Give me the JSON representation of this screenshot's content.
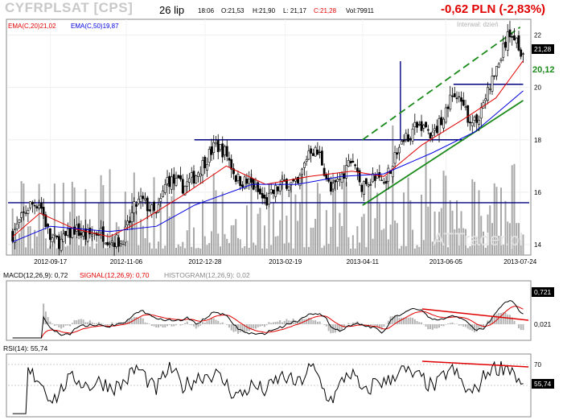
{
  "header": {
    "ticker": "CYFRPLSAT [CPS]",
    "date": "26 lip",
    "time": "18:06",
    "open": "O:21,53",
    "high": "H:21,90",
    "low": "L: 21,17",
    "close": "C:21,28",
    "volume": "Vol:79911",
    "change": "-0,62 PLN (-2,83%)"
  },
  "main_panel": {
    "ema20_label": "EMA(C,20)21,02",
    "ema50_label": "EMA(C,50)19,87",
    "interval_label": "Interwał: dzień",
    "watermark": "ATTrader.pl",
    "last_price_tag": "21,28",
    "level_tag": "20,12"
  },
  "macd_panel": {
    "macd_label": "MACD(12,26,9): 0,72",
    "signal_label": "SIGNAL(12,26,9): 0,70",
    "histogram_label": "HISTOGRAM(12,26,9): 0,02",
    "last_macd_tag": "0,721",
    "last_hist_tag": "0,021"
  },
  "rsi_panel": {
    "rsi_label": "RSI(14): 55,74",
    "last_rsi_tag": "55,74"
  },
  "colors": {
    "candles": "#000000",
    "ema20": "#e00000",
    "ema50": "#0000e0",
    "volume": "#a8a8a8",
    "support_lines": "#000080",
    "trend_channel": "#1a8a1a",
    "change_text": "#e00000",
    "macd_signal": "#e00000",
    "rsi_divergence": "#e00000"
  },
  "chart_data": [
    {
      "type": "candlestick",
      "panel": "price",
      "x_tick_labels": [
        "2012-09-17",
        "2012-11-06",
        "2012-12-28",
        "2013-02-19",
        "2013-04-11",
        "2013-06-05",
        "2013-07-24"
      ],
      "y_ticks": [
        14,
        16,
        18,
        20,
        22
      ],
      "ylim": [
        13.6,
        22.6
      ],
      "grid": true,
      "legend": "top-left",
      "series": [
        {
          "name": "CYFRPLSAT [CPS]",
          "close_path": [
            {
              "date": "2012-08-23",
              "value": 14.4
            },
            {
              "date": "2012-09-03",
              "value": 15.5
            },
            {
              "date": "2012-09-10",
              "value": 15.6
            },
            {
              "date": "2012-09-17",
              "value": 14.2
            },
            {
              "date": "2012-09-24",
              "value": 14.1
            },
            {
              "date": "2012-10-03",
              "value": 14.6
            },
            {
              "date": "2012-10-10",
              "value": 14.3
            },
            {
              "date": "2012-10-19",
              "value": 14.5
            },
            {
              "date": "2012-10-26",
              "value": 14.2
            },
            {
              "date": "2012-11-02",
              "value": 14.1
            },
            {
              "date": "2012-11-06",
              "value": 14.5
            },
            {
              "date": "2012-11-12",
              "value": 15.5
            },
            {
              "date": "2012-11-16",
              "value": 15.7
            },
            {
              "date": "2012-11-26",
              "value": 15.1
            },
            {
              "date": "2012-12-03",
              "value": 16.5
            },
            {
              "date": "2012-12-14",
              "value": 16.2
            },
            {
              "date": "2012-12-21",
              "value": 16.6
            },
            {
              "date": "2013-01-04",
              "value": 17.8
            },
            {
              "date": "2013-01-11",
              "value": 17.5
            },
            {
              "date": "2013-01-18",
              "value": 16.5
            },
            {
              "date": "2013-01-28",
              "value": 16.3
            },
            {
              "date": "2013-02-06",
              "value": 15.6
            },
            {
              "date": "2013-02-13",
              "value": 16.1
            },
            {
              "date": "2013-02-20",
              "value": 16.4
            },
            {
              "date": "2013-02-27",
              "value": 16.2
            },
            {
              "date": "2013-03-07",
              "value": 17.7
            },
            {
              "date": "2013-03-14",
              "value": 17.4
            },
            {
              "date": "2013-03-21",
              "value": 16.0
            },
            {
              "date": "2013-03-28",
              "value": 16.6
            },
            {
              "date": "2013-04-04",
              "value": 17.3
            },
            {
              "date": "2013-04-11",
              "value": 16.1
            },
            {
              "date": "2013-04-18",
              "value": 16.6
            },
            {
              "date": "2013-04-25",
              "value": 16.4
            },
            {
              "date": "2013-05-06",
              "value": 17.8
            },
            {
              "date": "2013-05-13",
              "value": 18.3
            },
            {
              "date": "2013-05-20",
              "value": 18.6
            },
            {
              "date": "2013-05-27",
              "value": 18.1
            },
            {
              "date": "2013-06-03",
              "value": 18.9
            },
            {
              "date": "2013-06-10",
              "value": 19.8
            },
            {
              "date": "2013-06-17",
              "value": 19.1
            },
            {
              "date": "2013-06-24",
              "value": 18.6
            },
            {
              "date": "2013-07-01",
              "value": 19.6
            },
            {
              "date": "2013-07-08",
              "value": 20.6
            },
            {
              "date": "2013-07-15",
              "value": 21.8
            },
            {
              "date": "2013-07-19",
              "value": 22.1
            },
            {
              "date": "2013-07-26",
              "value": 21.28
            }
          ]
        },
        {
          "name": "EMA(C,20)",
          "points": [
            {
              "date": "2012-08-23",
              "value": 14.3
            },
            {
              "date": "2012-09-10",
              "value": 15.2
            },
            {
              "date": "2012-10-03",
              "value": 14.6
            },
            {
              "date": "2012-10-26",
              "value": 14.3
            },
            {
              "date": "2012-11-16",
              "value": 14.9
            },
            {
              "date": "2012-12-14",
              "value": 15.9
            },
            {
              "date": "2013-01-11",
              "value": 17.0
            },
            {
              "date": "2013-02-06",
              "value": 16.3
            },
            {
              "date": "2013-03-07",
              "value": 16.6
            },
            {
              "date": "2013-04-04",
              "value": 16.8
            },
            {
              "date": "2013-04-25",
              "value": 16.6
            },
            {
              "date": "2013-05-20",
              "value": 17.8
            },
            {
              "date": "2013-06-17",
              "value": 18.8
            },
            {
              "date": "2013-07-08",
              "value": 19.6
            },
            {
              "date": "2013-07-26",
              "value": 21.02
            }
          ]
        },
        {
          "name": "EMA(C,50)",
          "points": [
            {
              "date": "2012-08-23",
              "value": 14.1
            },
            {
              "date": "2012-09-17",
              "value": 14.7
            },
            {
              "date": "2012-10-26",
              "value": 14.5
            },
            {
              "date": "2012-11-26",
              "value": 14.7
            },
            {
              "date": "2012-12-21",
              "value": 15.5
            },
            {
              "date": "2013-01-28",
              "value": 16.3
            },
            {
              "date": "2013-02-27",
              "value": 16.3
            },
            {
              "date": "2013-03-28",
              "value": 16.6
            },
            {
              "date": "2013-04-25",
              "value": 16.7
            },
            {
              "date": "2013-05-27",
              "value": 17.5
            },
            {
              "date": "2013-06-24",
              "value": 18.3
            },
            {
              "date": "2013-07-26",
              "value": 19.87
            }
          ]
        }
      ],
      "annotations": [
        {
          "kind": "horizontal-line",
          "value": 15.6
        },
        {
          "kind": "horizontal-line",
          "value": 18.0,
          "from": "2012-12-21",
          "to": "2013-06-17"
        },
        {
          "kind": "horizontal-line",
          "value": 20.12,
          "from": "2013-06-10",
          "to": "2013-07-26"
        },
        {
          "kind": "vertical-line",
          "date": "2013-05-06",
          "from_value": 18.0,
          "to_value": 21.0
        },
        {
          "kind": "trend-line",
          "style": "solid",
          "from": {
            "date": "2013-04-11",
            "value": 15.5
          },
          "to": {
            "date": "2013-07-26",
            "value": 19.5
          }
        },
        {
          "kind": "trend-line",
          "style": "dashed",
          "from": {
            "date": "2013-04-11",
            "value": 18.0
          },
          "to": {
            "date": "2013-07-24",
            "value": 22.3
          }
        }
      ]
    },
    {
      "type": "bar",
      "panel": "volume",
      "series": [
        {
          "name": "Vol",
          "last_value": 79911
        }
      ]
    },
    {
      "type": "line",
      "panel": "macd",
      "x_tick_labels": [],
      "series": [
        {
          "name": "MACD(12,26,9)",
          "last_value": 0.721
        },
        {
          "name": "SIGNAL(12,26,9)",
          "last_value": 0.7
        },
        {
          "name": "HISTOGRAM(12,26,9)",
          "last_value": 0.021
        }
      ]
    },
    {
      "type": "line",
      "panel": "rsi",
      "y_ticks": [
        30,
        50,
        70
      ],
      "ylim": [
        20,
        80
      ],
      "series": [
        {
          "name": "RSI(14)",
          "last_value": 55.74
        }
      ]
    }
  ]
}
